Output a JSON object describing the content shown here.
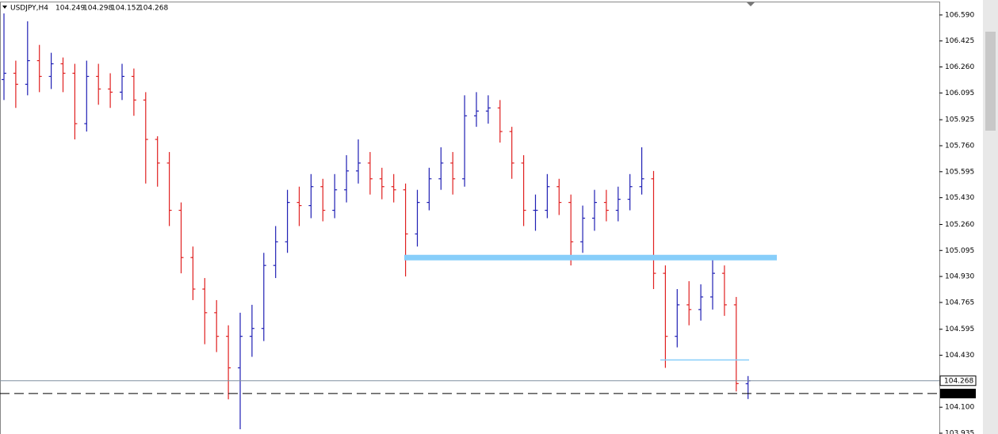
{
  "chart_data": {
    "type": "ohlc",
    "title": "USDJPY,H4",
    "up_color": "#1f1fb4",
    "down_color": "#e02020",
    "open": [
      106.18,
      106.22,
      106.15,
      106.3,
      106.2,
      106.28,
      106.22,
      105.9,
      106.2,
      106.12,
      106.1,
      106.2,
      106.05,
      105.8,
      105.65,
      105.35,
      105.05,
      104.85,
      104.7,
      104.55,
      104.35,
      104.55,
      104.6,
      105.0,
      105.15,
      105.4,
      105.38,
      105.5,
      105.35,
      105.48,
      105.6,
      105.65,
      105.55,
      105.5,
      105.48,
      105.2,
      105.4,
      105.55,
      105.65,
      105.55,
      105.95,
      105.98,
      106.0,
      105.85,
      105.65,
      105.35,
      105.35,
      105.5,
      105.4,
      105.15,
      105.3,
      105.4,
      105.35,
      105.42,
      105.5,
      105.55,
      104.95,
      104.55,
      104.75,
      104.72,
      104.8,
      104.95,
      104.75,
      104.249
    ],
    "high": [
      106.6,
      106.3,
      106.55,
      106.4,
      106.35,
      106.32,
      106.28,
      106.3,
      106.28,
      106.22,
      106.28,
      106.25,
      106.1,
      105.82,
      105.72,
      105.4,
      105.12,
      104.92,
      104.78,
      104.62,
      104.7,
      104.75,
      105.08,
      105.25,
      105.48,
      105.5,
      105.58,
      105.55,
      105.58,
      105.7,
      105.8,
      105.72,
      105.62,
      105.58,
      105.52,
      105.48,
      105.62,
      105.75,
      105.72,
      106.08,
      106.1,
      106.08,
      106.05,
      105.88,
      105.7,
      105.45,
      105.58,
      105.55,
      105.45,
      105.38,
      105.48,
      105.48,
      105.5,
      105.58,
      105.75,
      105.6,
      105.0,
      104.85,
      104.9,
      104.88,
      105.05,
      105.0,
      104.8,
      104.298
    ],
    "low": [
      106.05,
      106.0,
      106.08,
      106.1,
      106.12,
      106.1,
      105.8,
      105.85,
      106.02,
      106.0,
      106.05,
      105.95,
      105.52,
      105.5,
      105.25,
      104.95,
      104.78,
      104.5,
      104.45,
      104.15,
      103.96,
      104.42,
      104.52,
      104.92,
      105.08,
      105.25,
      105.3,
      105.28,
      105.3,
      105.4,
      105.52,
      105.45,
      105.42,
      105.4,
      104.93,
      105.12,
      105.35,
      105.48,
      105.45,
      105.5,
      105.88,
      105.9,
      105.78,
      105.55,
      105.25,
      105.22,
      105.3,
      105.32,
      105.0,
      105.08,
      105.22,
      105.28,
      105.28,
      105.35,
      105.45,
      104.85,
      104.35,
      104.48,
      104.62,
      104.65,
      104.72,
      104.68,
      104.2,
      104.152
    ],
    "close": [
      106.22,
      106.15,
      106.3,
      106.2,
      106.28,
      106.22,
      105.9,
      106.2,
      106.12,
      106.1,
      106.2,
      106.05,
      105.8,
      105.65,
      105.35,
      105.05,
      104.85,
      104.7,
      104.55,
      104.35,
      104.55,
      104.6,
      105.0,
      105.15,
      105.4,
      105.38,
      105.5,
      105.35,
      105.48,
      105.6,
      105.65,
      105.55,
      105.5,
      105.48,
      105.2,
      105.4,
      105.55,
      105.65,
      105.55,
      105.95,
      105.98,
      106.0,
      105.85,
      105.65,
      105.35,
      105.35,
      105.5,
      105.4,
      105.15,
      105.3,
      105.4,
      105.35,
      105.42,
      105.5,
      105.55,
      104.95,
      104.55,
      104.75,
      104.72,
      104.8,
      104.95,
      104.75,
      104.25,
      104.268
    ],
    "hlines": [
      {
        "value": 105.05,
        "color": "#87cefa"
      },
      {
        "value": 104.4,
        "color": "#87cefa"
      }
    ],
    "dashed_level": 104.187,
    "ylim": [
      103.93,
      106.685
    ],
    "yticks": [
      {
        "value": 106.59,
        "label": "106.590"
      },
      106.425,
      {
        "value": 106.26,
        "label": "106.260"
      },
      106.095,
      105.925,
      {
        "value": 105.76,
        "label": "105.760"
      },
      105.595,
      {
        "value": 105.43,
        "label": "105.430"
      },
      {
        "value": 105.26,
        "label": "105.260"
      },
      105.095,
      {
        "value": 104.93,
        "label": "104.930"
      },
      104.765,
      104.595,
      {
        "value": 104.43,
        "label": "104.430"
      },
      {
        "value": 104.1,
        "label": "104.100"
      },
      103.935
    ]
  }
}
